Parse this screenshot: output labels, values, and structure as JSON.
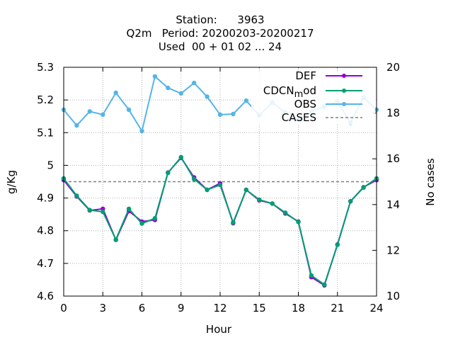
{
  "chart_data": {
    "type": "line",
    "title": [
      "Station:      3963",
      "Q2m   Period: 20200203-20200217",
      "Used  00 + 01 02 ... 24"
    ],
    "xlabel": "Hour",
    "ylabel": "g/Kg",
    "y2label": "No cases",
    "xlim": [
      0,
      24
    ],
    "ylim": [
      4.6,
      5.3
    ],
    "y2lim": [
      10,
      20
    ],
    "xticks": [
      0,
      3,
      6,
      9,
      12,
      15,
      18,
      21,
      24
    ],
    "xtick_labels": [
      "0",
      "3",
      "6",
      "9",
      "12",
      "15",
      "18",
      "21",
      "24"
    ],
    "yticks": [
      4.6,
      4.7,
      4.8,
      4.9,
      5.0,
      5.1,
      5.2,
      5.3
    ],
    "ytick_labels": [
      "4.6",
      "4.7",
      "4.8",
      "4.9",
      "5",
      "5.1",
      "5.2",
      "5.3"
    ],
    "y2ticks": [
      10,
      12,
      14,
      16,
      18,
      20
    ],
    "y2tick_labels": [
      "10",
      "12",
      "14",
      "16",
      "18",
      "20"
    ],
    "grid": true,
    "legend_position": "top-right",
    "x": [
      0,
      1,
      2,
      3,
      4,
      5,
      6,
      7,
      8,
      9,
      10,
      11,
      12,
      13,
      14,
      15,
      16,
      17,
      18,
      19,
      20,
      21,
      22,
      23,
      24
    ],
    "series": [
      {
        "name": "DEF",
        "color": "#9400d3",
        "axis": "y1",
        "style": "line-points",
        "values": [
          4.955,
          4.905,
          4.862,
          4.867,
          4.772,
          4.86,
          4.828,
          4.833,
          4.978,
          5.023,
          4.963,
          4.925,
          4.945,
          4.823,
          4.925,
          4.893,
          4.883,
          4.853,
          4.828,
          4.658,
          4.633,
          4.758,
          4.89,
          4.933,
          4.955
        ]
      },
      {
        "name": "CDCN_mod",
        "color": "#009e73",
        "axis": "y1",
        "style": "line-points",
        "values": [
          4.96,
          4.907,
          4.863,
          4.858,
          4.773,
          4.867,
          4.822,
          4.838,
          4.977,
          5.025,
          4.958,
          4.925,
          4.94,
          4.825,
          4.925,
          4.895,
          4.883,
          4.855,
          4.827,
          4.663,
          4.635,
          4.757,
          4.89,
          4.932,
          4.96
        ]
      },
      {
        "name": "OBS",
        "color": "#56b4e9",
        "axis": "y1",
        "style": "line-points",
        "values": [
          5.17,
          5.122,
          5.165,
          5.155,
          5.222,
          5.17,
          5.105,
          5.272,
          5.237,
          5.22,
          5.252,
          5.21,
          5.155,
          5.157,
          5.198,
          5.153,
          5.192,
          5.162,
          5.14,
          5.165,
          5.18,
          5.195,
          5.13,
          5.208,
          5.17
        ]
      },
      {
        "name": "CASES",
        "color": "#808080",
        "axis": "y2",
        "style": "dashed",
        "values": [
          15,
          15,
          15,
          15,
          15,
          15,
          15,
          15,
          15,
          15,
          15,
          15,
          15,
          15,
          15,
          15,
          15,
          15,
          15,
          15,
          15,
          15,
          15,
          15,
          15
        ]
      }
    ]
  },
  "legend": {
    "entries": [
      {
        "label": "DEF",
        "sub": ""
      },
      {
        "label": "CDCN",
        "sub": "m",
        "label_tail": "od"
      },
      {
        "label": "OBS",
        "sub": ""
      },
      {
        "label": "CASES",
        "sub": ""
      }
    ]
  }
}
